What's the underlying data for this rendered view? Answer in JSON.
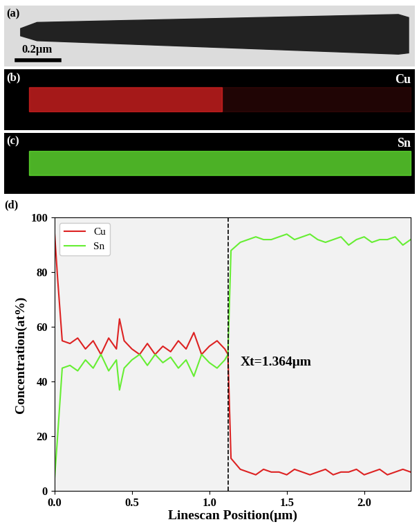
{
  "panels": [
    {
      "label": "(a)",
      "scale_bar": "0.2μm"
    },
    {
      "label": "(b)",
      "element": "Cu",
      "color": "#dd2222"
    },
    {
      "label": "(c)",
      "element": "Sn",
      "color": "#66ee33"
    }
  ],
  "chart_data": {
    "type": "line",
    "label": "(d)",
    "x_label": "Linescan Position(μm)",
    "y_label": "Concentration(at%)",
    "x": [
      0.0,
      0.02,
      0.05,
      0.1,
      0.15,
      0.2,
      0.25,
      0.3,
      0.35,
      0.4,
      0.42,
      0.45,
      0.5,
      0.55,
      0.6,
      0.65,
      0.7,
      0.75,
      0.8,
      0.85,
      0.9,
      0.95,
      1.0,
      1.05,
      1.1,
      1.12,
      1.14,
      1.2,
      1.25,
      1.3,
      1.35,
      1.4,
      1.45,
      1.5,
      1.55,
      1.6,
      1.65,
      1.7,
      1.75,
      1.8,
      1.85,
      1.9,
      1.95,
      2.0,
      2.05,
      2.1,
      2.15,
      2.2,
      2.25,
      2.3
    ],
    "series": [
      {
        "name": "Cu",
        "color": "#dd2222",
        "values": [
          95,
          78,
          55,
          54,
          56,
          52,
          55,
          50,
          56,
          52,
          63,
          55,
          52,
          50,
          54,
          50,
          53,
          51,
          55,
          52,
          58,
          50,
          53,
          55,
          52,
          50,
          12,
          8,
          7,
          6,
          8,
          7,
          7,
          6,
          8,
          7,
          6,
          7,
          8,
          6,
          7,
          7,
          8,
          6,
          7,
          8,
          6,
          7,
          8,
          7
        ]
      },
      {
        "name": "Sn",
        "color": "#66ee33",
        "values": [
          4,
          20,
          45,
          46,
          44,
          48,
          45,
          50,
          44,
          48,
          37,
          45,
          48,
          50,
          46,
          50,
          47,
          49,
          45,
          48,
          42,
          50,
          47,
          45,
          48,
          50,
          88,
          91,
          92,
          93,
          92,
          92,
          93,
          94,
          92,
          93,
          94,
          92,
          91,
          92,
          93,
          90,
          92,
          93,
          91,
          92,
          92,
          93,
          90,
          92
        ]
      }
    ],
    "reference_x": 1.12,
    "annotation": {
      "text": "Xt=1.364μm",
      "x": 1.2,
      "y": 47
    },
    "xlim": [
      0.0,
      2.3
    ],
    "xticks": [
      0.0,
      0.5,
      1.0,
      1.5,
      2.0
    ],
    "ylim": [
      0,
      100
    ],
    "yticks": [
      0,
      20,
      40,
      60,
      80,
      100
    ],
    "legend": "upper left",
    "grid": false
  }
}
